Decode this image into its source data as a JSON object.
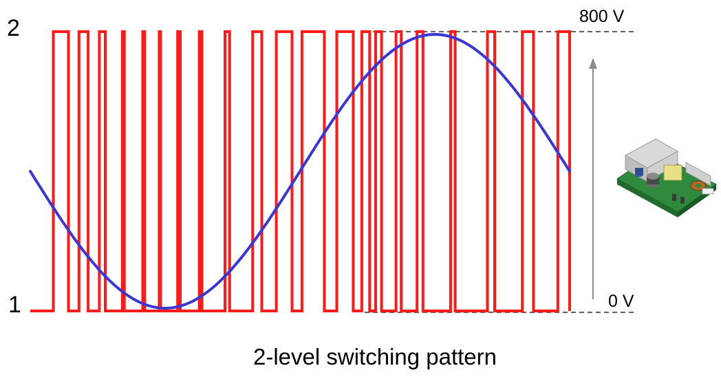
{
  "labels": {
    "level_high": "2",
    "level_low": "1",
    "voltage_high": "800 V",
    "voltage_low": "0 V",
    "caption": "2-level switching pattern"
  },
  "colors": {
    "pwm": "#ff1a1a",
    "sine": "#3a36d6",
    "arrow": "#8c8c8c",
    "dashed": "#000000"
  },
  "pwm": {
    "levels": [
      1,
      2
    ],
    "pulse_high_intervals": [
      [
        0.035,
        0.058
      ],
      [
        0.074,
        0.088
      ],
      [
        0.105,
        0.114
      ],
      [
        0.14,
        0.143
      ],
      [
        0.171,
        0.174
      ],
      [
        0.196,
        0.198
      ],
      [
        0.224,
        0.228
      ],
      [
        0.257,
        0.261
      ],
      [
        0.296,
        0.303
      ],
      [
        0.338,
        0.352
      ],
      [
        0.374,
        0.398
      ],
      [
        0.413,
        0.447
      ],
      [
        0.466,
        0.491
      ],
      [
        0.504,
        0.516
      ],
      [
        0.525,
        0.534
      ],
      [
        0.556,
        0.564
      ],
      [
        0.588,
        0.597
      ],
      [
        0.639,
        0.646
      ],
      [
        0.695,
        0.706
      ],
      [
        0.748,
        0.765
      ],
      [
        0.802,
        0.82
      ]
    ]
  },
  "sine": {
    "period_fraction": 1.0,
    "phase_start": "mid-level, descending",
    "amplitude_levels": [
      1,
      2
    ]
  },
  "image": {
    "name": "power-supply-board"
  }
}
